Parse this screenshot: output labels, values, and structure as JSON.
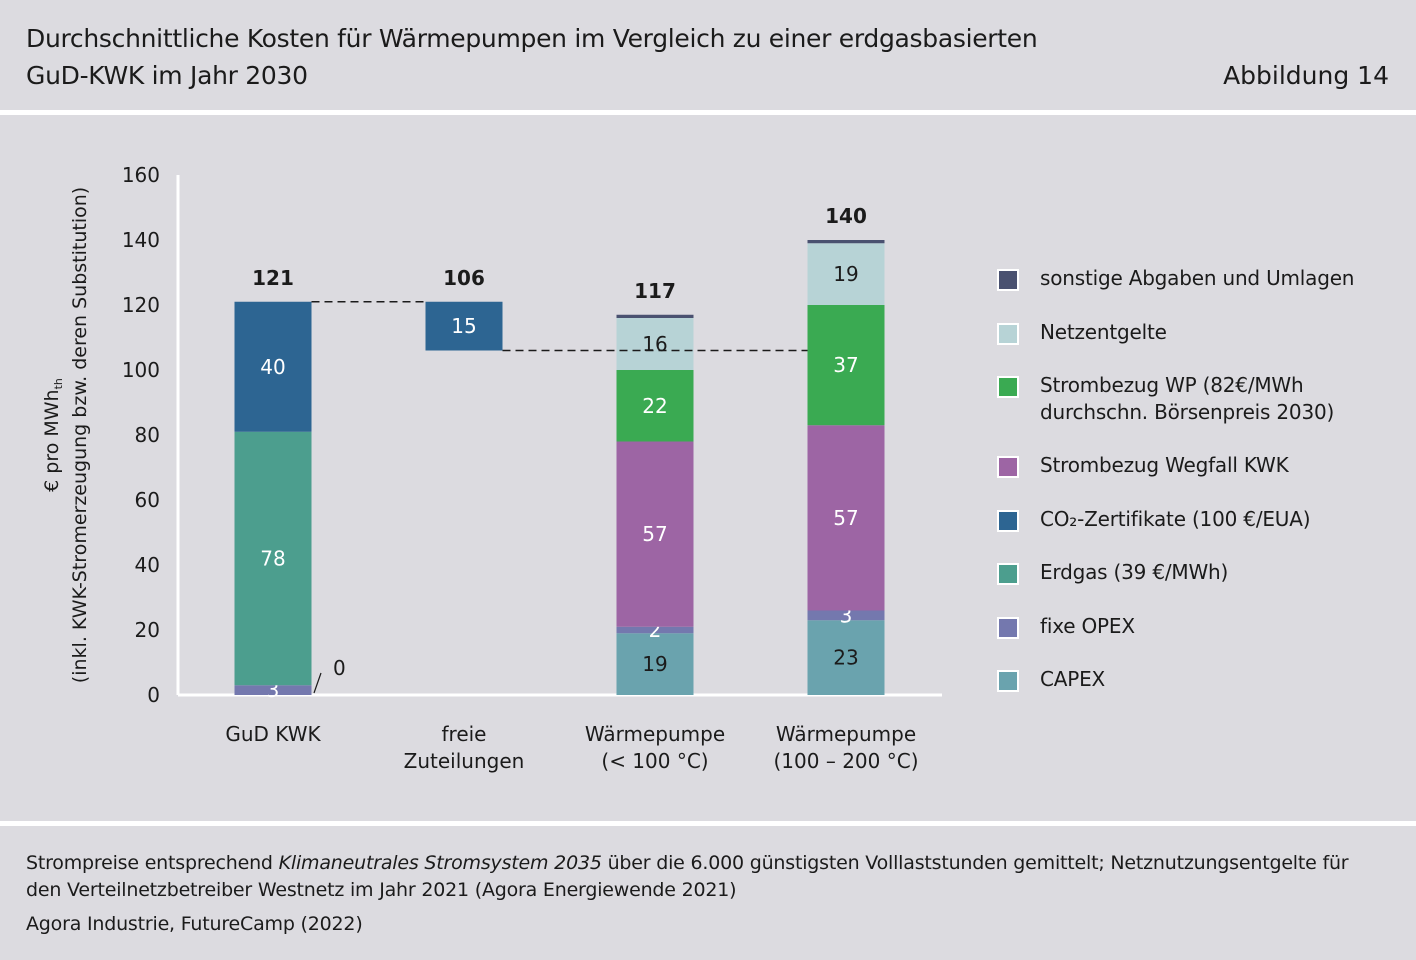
{
  "header": {
    "title_line1": "Durchschnittliche Kosten für Wärmepumpen im Vergleich zu einer erdgasbasierten",
    "title_line2": "GuD-KWK im Jahr 2030",
    "figure_label": "Abbildung 14"
  },
  "chart_data": {
    "type": "bar",
    "stacked": true,
    "ylabel_line1": "€ pro MWh",
    "ylabel_sub": "th",
    "ylabel_line2": "(inkl. KWK-Stromerzeugung bzw. deren Substitution)",
    "ylim": [
      0,
      160
    ],
    "yticks": [
      "0",
      "20",
      "40",
      "60",
      "80",
      "100",
      "120",
      "140",
      "160"
    ],
    "grid": false,
    "legend_position": "right",
    "categories": [
      [
        "GuD KWK"
      ],
      [
        "freie",
        "Zuteilungen"
      ],
      [
        "Wärmepumpe",
        "(< 100 °C)"
      ],
      [
        "Wärmepumpe",
        "(100 – 200 °C)"
      ]
    ],
    "totals": [
      "121",
      "106",
      "117",
      "140"
    ],
    "colors": {
      "sonstige": "#4a5170",
      "netz": "#b7d3d6",
      "strom_wp": "#3aaa52",
      "strom_kwk": "#9d65a4",
      "co2": "#2d6592",
      "erdgas": "#4c9e8e",
      "opex": "#7478ae",
      "capex": "#6aa3ae"
    },
    "segments": [
      [
        {
          "key": "opex",
          "start": 0,
          "value": 3,
          "label": "3"
        },
        {
          "key": "capex",
          "start": 3,
          "value": 0,
          "label": ""
        },
        {
          "key": "erdgas",
          "start": 3,
          "value": 78,
          "label": "78"
        },
        {
          "key": "co2",
          "start": 81,
          "value": 40,
          "label": "40"
        }
      ],
      [
        {
          "key": "co2",
          "start": 106,
          "value": 15,
          "label": "15"
        }
      ],
      [
        {
          "key": "capex",
          "start": 0,
          "value": 19,
          "label": "19"
        },
        {
          "key": "opex",
          "start": 19,
          "value": 2,
          "label": "2"
        },
        {
          "key": "strom_kwk",
          "start": 21,
          "value": 57,
          "label": "57"
        },
        {
          "key": "strom_wp",
          "start": 78,
          "value": 22,
          "label": "22"
        },
        {
          "key": "netz",
          "start": 100,
          "value": 16,
          "label": "16"
        },
        {
          "key": "sonstige",
          "start": 116,
          "value": 1,
          "label": ""
        }
      ],
      [
        {
          "key": "capex",
          "start": 0,
          "value": 23,
          "label": "23"
        },
        {
          "key": "opex",
          "start": 23,
          "value": 3,
          "label": "3"
        },
        {
          "key": "strom_kwk",
          "start": 26,
          "value": 57,
          "label": "57"
        },
        {
          "key": "strom_wp",
          "start": 83,
          "value": 37,
          "label": "37"
        },
        {
          "key": "netz",
          "start": 120,
          "value": 19,
          "label": "19"
        },
        {
          "key": "sonstige",
          "start": 139,
          "value": 1,
          "label": ""
        }
      ]
    ],
    "zero_annotation": "0",
    "connector_levels": [
      121,
      106
    ]
  },
  "legend": {
    "items": [
      {
        "key": "sonstige",
        "label": "sonstige Abgaben und Umlagen"
      },
      {
        "key": "netz",
        "label": "Netzentgelte"
      },
      {
        "key": "strom_wp",
        "label": "Strombezug WP (82€/MWh\ndurchschn. Börsenpreis 2030)"
      },
      {
        "key": "strom_kwk",
        "label": "Strombezug Wegfall KWK"
      },
      {
        "key": "co2",
        "label": "CO₂-Zertifikate (100 €/EUA)"
      },
      {
        "key": "erdgas",
        "label": "Erdgas (39 €/MWh)"
      },
      {
        "key": "opex",
        "label": "fixe OPEX"
      },
      {
        "key": "capex",
        "label": "CAPEX"
      }
    ]
  },
  "footer": {
    "note_part1": "Strompreise entsprechend ",
    "note_italic": "Klimaneutrales Stromsystem 2035",
    "note_part2": " über die 6.000 günstigsten Volllaststunden gemittelt; Netznutzungsentgelte für den Verteilnetzbetreiber Westnetz im Jahr 2021 (Agora Energiewende 2021)",
    "source": "Agora Industrie, FutureCamp (2022)"
  }
}
